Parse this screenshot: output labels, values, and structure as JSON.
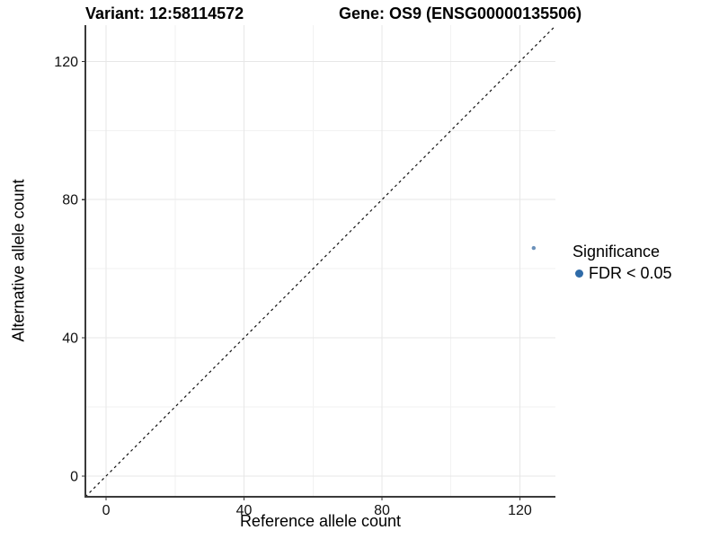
{
  "chart_data": {
    "type": "scatter",
    "title_left": "Variant: 12:58114572",
    "title_right": "Gene: OS9 (ENSG00000135506)",
    "xlabel": "Reference allele count",
    "ylabel": "Alternative allele count",
    "xlim": [
      -6,
      130.3
    ],
    "ylim": [
      -6,
      130.5
    ],
    "x_ticks": [
      0,
      40,
      80,
      120
    ],
    "y_ticks": [
      0,
      40,
      80,
      120
    ],
    "x_minor_ticks": [
      20,
      60,
      100
    ],
    "y_minor_ticks": [
      20,
      60,
      100
    ],
    "grid": "major+minor",
    "identity_line": {
      "style": "dashed",
      "color": "#111111"
    },
    "series": [
      {
        "name": "FDR < 0.05",
        "points": [
          [
            124,
            66
          ]
        ],
        "point_color": "#6b91ba",
        "point_radius_px": 2.2
      }
    ],
    "legend": {
      "title": "Significance",
      "position": "right",
      "items": [
        {
          "label": "FDR < 0.05",
          "swatch_color": "#2f6ba8",
          "swatch_radius_px": 4.5
        }
      ]
    },
    "colors": {
      "axis_line": "#3a3a3a",
      "tick": "#333333",
      "major_grid": "#e7e7e7",
      "minor_grid": "#f2f2f2",
      "tick_label": "#111111",
      "background": "#ffffff"
    }
  }
}
